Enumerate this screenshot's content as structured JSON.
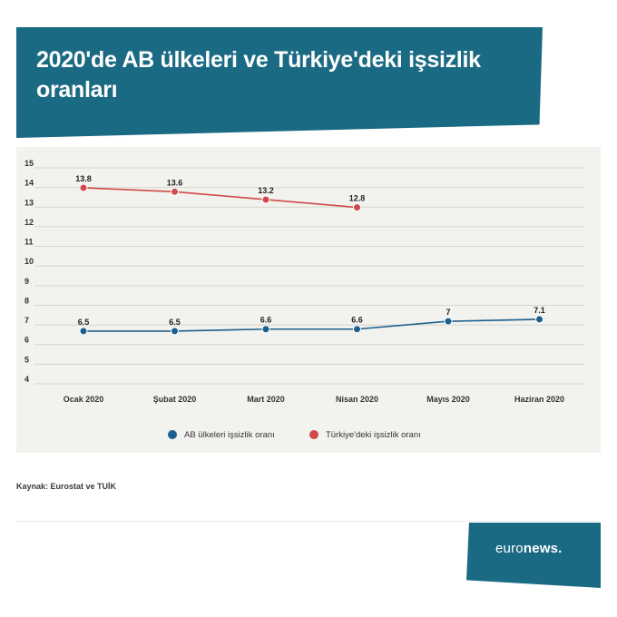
{
  "title": "2020'de AB ülkeleri ve Türkiye'deki işsizlik oranları",
  "source": "Kaynak: Eurostat ve TUİK",
  "logo": {
    "part1": "euro",
    "part2": "news."
  },
  "chart_data": {
    "type": "line",
    "categories": [
      "Ocak 2020",
      "Şubat 2020",
      "Mart 2020",
      "Nisan 2020",
      "Mayıs 2020",
      "Haziran 2020"
    ],
    "yticks": [
      "4",
      "5",
      "6",
      "7",
      "8",
      "9",
      "10",
      "11",
      "12",
      "13",
      "14",
      "15"
    ],
    "ylim": [
      4,
      15
    ],
    "grid": true,
    "legend_position": "bottom",
    "series": [
      {
        "name": "AB ülkeleri işsizlik oranı",
        "color": "#1b5f8e",
        "values": [
          6.5,
          6.5,
          6.6,
          6.6,
          7,
          7.1
        ],
        "labels": [
          "6.5",
          "6.5",
          "6.6",
          "6.6",
          "7",
          "7.1"
        ]
      },
      {
        "name": "Türkiye'deki işsizlik oranı",
        "color": "#cf4a4a",
        "values": [
          13.8,
          13.6,
          13.2,
          12.8,
          null,
          null
        ],
        "labels": [
          "13.8",
          "13.6",
          "13.2",
          "12.8",
          "",
          ""
        ]
      }
    ]
  }
}
